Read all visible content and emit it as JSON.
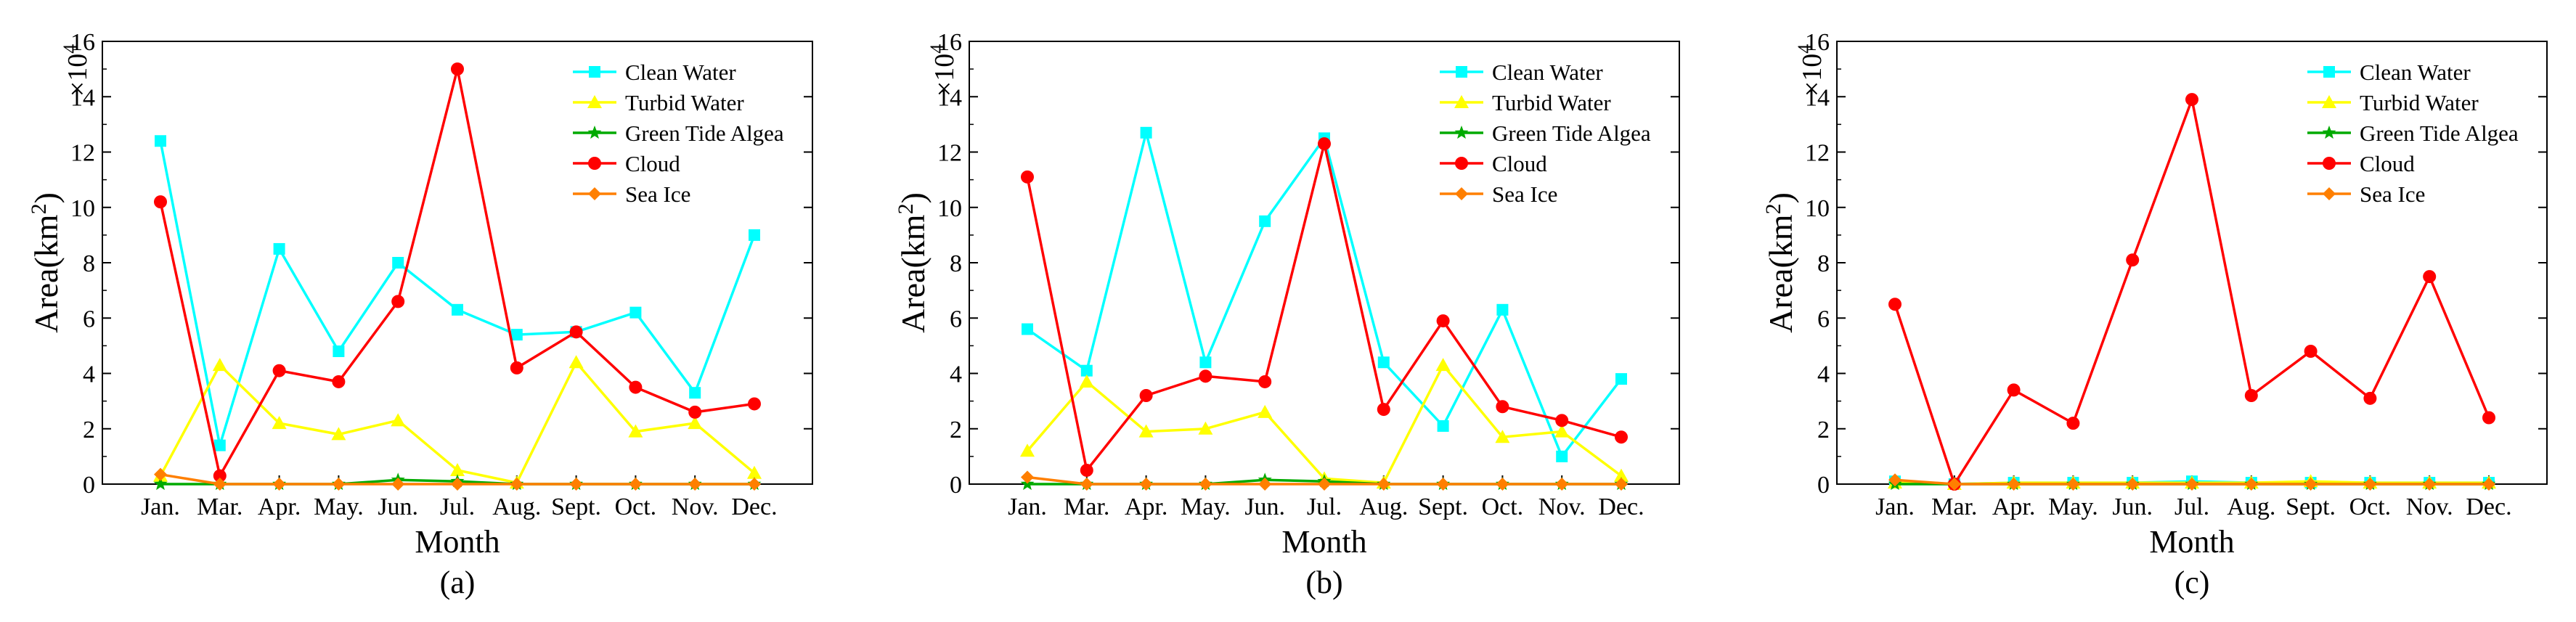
{
  "y_unit": "×10",
  "y_unit_exp": "4",
  "chart_data": [
    {
      "type": "line",
      "caption": "(a)",
      "xlabel": "Month",
      "ylabel": "Area(km",
      "ylabel_sup": "2",
      "ylabel_close": ")",
      "categories": [
        "Jan.",
        "Mar.",
        "Apr.",
        "May.",
        "Jun.",
        "Jul.",
        "Aug.",
        "Sept.",
        "Oct.",
        "Nov.",
        "Dec."
      ],
      "ylim": [
        0,
        16
      ],
      "yticks": [
        0,
        2,
        4,
        6,
        8,
        10,
        12,
        14,
        16
      ],
      "legend_position": "top-right",
      "series": [
        {
          "name": "Clean Water",
          "color": "#00FFFF",
          "marker": "square",
          "values": [
            12.4,
            1.4,
            8.5,
            4.8,
            8.0,
            6.3,
            5.4,
            5.5,
            6.2,
            3.3,
            9.0
          ]
        },
        {
          "name": "Turbid Water",
          "color": "#FFFF00",
          "marker": "triangle",
          "values": [
            0.3,
            4.3,
            2.2,
            1.8,
            2.3,
            0.5,
            0.05,
            4.4,
            1.9,
            2.2,
            0.4
          ]
        },
        {
          "name": "Green Tide Algea",
          "color": "#00AA00",
          "marker": "star",
          "values": [
            0,
            0,
            0,
            0,
            0.15,
            0.1,
            0,
            0,
            0,
            0,
            0
          ]
        },
        {
          "name": "Cloud",
          "color": "#FF0000",
          "marker": "circle",
          "values": [
            10.2,
            0.3,
            4.1,
            3.7,
            6.6,
            15.0,
            4.2,
            5.5,
            3.5,
            2.6,
            2.9
          ]
        },
        {
          "name": "Sea Ice",
          "color": "#FF7F00",
          "marker": "diamond",
          "values": [
            0.35,
            0,
            0,
            0,
            0,
            0,
            0,
            0,
            0,
            0,
            0
          ]
        }
      ]
    },
    {
      "type": "line",
      "caption": "(b)",
      "xlabel": "Month",
      "ylabel": "Area(km",
      "ylabel_sup": "2",
      "ylabel_close": ")",
      "categories": [
        "Jan.",
        "Mar.",
        "Apr.",
        "May.",
        "Jun.",
        "Jul.",
        "Aug.",
        "Sept.",
        "Oct.",
        "Nov.",
        "Dec."
      ],
      "ylim": [
        0,
        16
      ],
      "yticks": [
        0,
        2,
        4,
        6,
        8,
        10,
        12,
        14,
        16
      ],
      "legend_position": "top-right",
      "series": [
        {
          "name": "Clean Water",
          "color": "#00FFFF",
          "marker": "square",
          "values": [
            5.6,
            4.1,
            12.7,
            4.4,
            9.5,
            12.5,
            4.4,
            2.1,
            6.3,
            1.0,
            3.8
          ]
        },
        {
          "name": "Turbid Water",
          "color": "#FFFF00",
          "marker": "triangle",
          "values": [
            1.2,
            3.7,
            1.9,
            2.0,
            2.6,
            0.2,
            0.05,
            4.3,
            1.7,
            1.9,
            0.3
          ]
        },
        {
          "name": "Green Tide Algea",
          "color": "#00AA00",
          "marker": "star",
          "values": [
            0,
            0,
            0,
            0,
            0.15,
            0.1,
            0,
            0,
            0,
            0,
            0
          ]
        },
        {
          "name": "Cloud",
          "color": "#FF0000",
          "marker": "circle",
          "values": [
            11.1,
            0.5,
            3.2,
            3.9,
            3.7,
            12.3,
            2.7,
            5.9,
            2.8,
            2.3,
            1.7
          ]
        },
        {
          "name": "Sea Ice",
          "color": "#FF7F00",
          "marker": "diamond",
          "values": [
            0.25,
            0,
            0,
            0,
            0,
            0,
            0,
            0,
            0,
            0,
            0
          ]
        }
      ]
    },
    {
      "type": "line",
      "caption": "(c)",
      "xlabel": "Month",
      "ylabel": "Area(km",
      "ylabel_sup": "2",
      "ylabel_close": ")",
      "categories": [
        "Jan.",
        "Mar.",
        "Apr.",
        "May.",
        "Jun.",
        "Jul.",
        "Aug.",
        "Sept.",
        "Oct.",
        "Nov.",
        "Dec."
      ],
      "ylim": [
        0,
        16
      ],
      "yticks": [
        0,
        2,
        4,
        6,
        8,
        10,
        12,
        14,
        16
      ],
      "legend_position": "top-right",
      "series": [
        {
          "name": "Clean Water",
          "color": "#00FFFF",
          "marker": "square",
          "values": [
            0.1,
            0,
            0.05,
            0.05,
            0.05,
            0.1,
            0.05,
            0.05,
            0.05,
            0.05,
            0.05
          ]
        },
        {
          "name": "Turbid Water",
          "color": "#FFFF00",
          "marker": "triangle",
          "values": [
            0.05,
            0,
            0.05,
            0.05,
            0.05,
            0.05,
            0.05,
            0.1,
            0.05,
            0.05,
            0.05
          ]
        },
        {
          "name": "Green Tide Algea",
          "color": "#00AA00",
          "marker": "star",
          "values": [
            0,
            0,
            0,
            0,
            0,
            0,
            0,
            0,
            0,
            0,
            0
          ]
        },
        {
          "name": "Cloud",
          "color": "#FF0000",
          "marker": "circle",
          "values": [
            6.5,
            0,
            3.4,
            2.2,
            8.1,
            13.9,
            3.2,
            4.8,
            3.1,
            7.5,
            2.4
          ]
        },
        {
          "name": "Sea Ice",
          "color": "#FF7F00",
          "marker": "diamond",
          "values": [
            0.15,
            0,
            0,
            0,
            0,
            0,
            0,
            0,
            0,
            0,
            0
          ]
        }
      ]
    }
  ]
}
